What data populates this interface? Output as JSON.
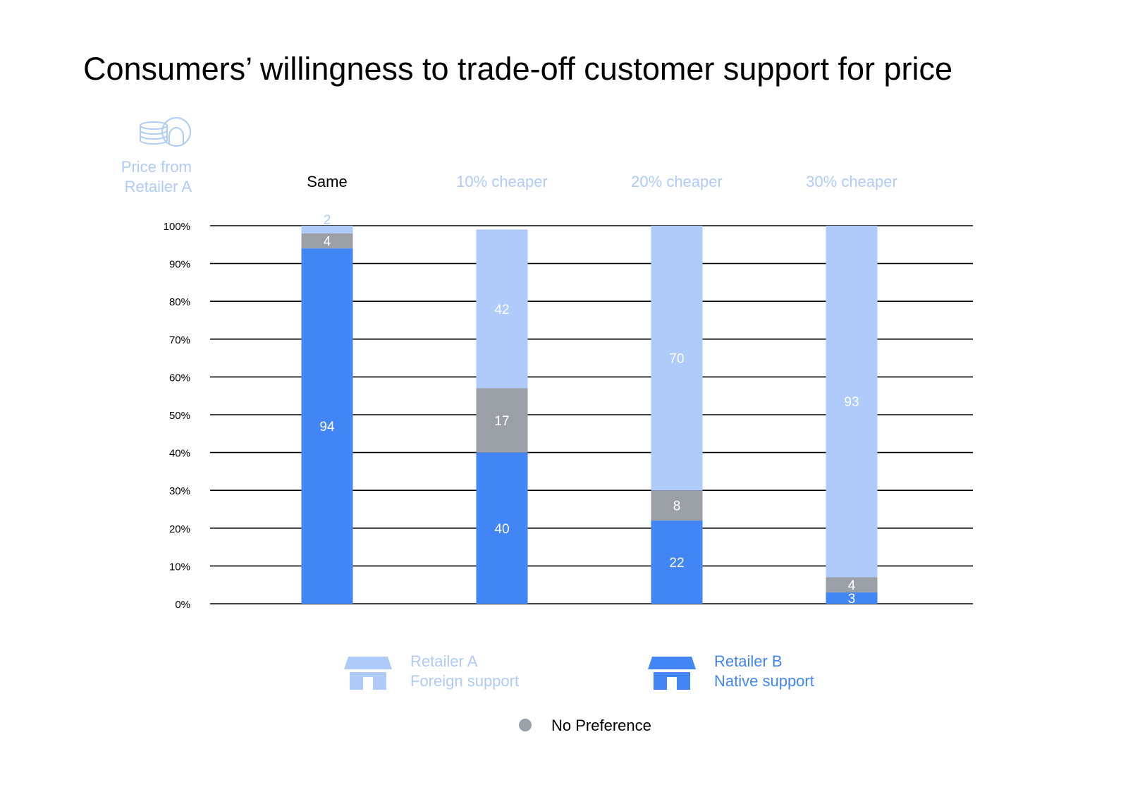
{
  "chart_data": {
    "type": "bar",
    "stacked": true,
    "title": "Consumers’ willingness to trade-off customer support for price",
    "category_header": [
      "Price from",
      "Retailer A"
    ],
    "categories": [
      "Same",
      "10% cheaper",
      "20% cheaper",
      "30% cheaper"
    ],
    "series": [
      {
        "name": "Retailer B Native support",
        "values": [
          94,
          40,
          22,
          3
        ]
      },
      {
        "name": "No Preference",
        "values": [
          4,
          17,
          8,
          4
        ]
      },
      {
        "name": "Retailer A Foreign support",
        "values": [
          2,
          42,
          70,
          93
        ]
      }
    ],
    "ylim": [
      0,
      100
    ],
    "y_ticks": [
      "0%",
      "10%",
      "20%",
      "30%",
      "40%",
      "50%",
      "60%",
      "70%",
      "80%",
      "90%",
      "100%"
    ],
    "grid": true,
    "legend": {
      "placement": "bottom",
      "retailer_a": [
        "Retailer A",
        "Foreign support"
      ],
      "retailer_b": [
        "Retailer B",
        "Native support"
      ],
      "no_preference": "No Preference"
    },
    "colors": {
      "retailer_b": "#4285F4",
      "no_preference": "#9AA0A6",
      "retailer_a": "#AECBFA",
      "grid": "#000000",
      "highlight_category": "#000000",
      "muted_category": "#AECBFA"
    },
    "icons": {
      "price_header": "coins-and-headset-icon",
      "retailer_a": "storefront-icon",
      "retailer_b": "storefront-icon",
      "no_preference": "circle-dot-icon"
    }
  }
}
